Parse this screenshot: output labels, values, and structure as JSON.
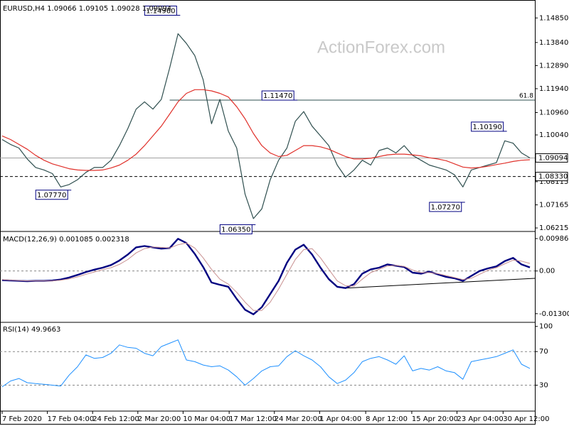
{
  "chart_data": [
    {
      "type": "line",
      "title": "EURUSD,H4  1.09066 1.09105 1.09028 1.09094",
      "watermark": "ActionForex.com",
      "xlim": [
        0,
        63
      ],
      "ylim": [
        1.061,
        1.155
      ],
      "yticks": [
        {
          "value": 1.1485,
          "label": "1.14850"
        },
        {
          "value": 1.1384,
          "label": "1.13840"
        },
        {
          "value": 1.1289,
          "label": "1.12890"
        },
        {
          "value": 1.1194,
          "label": "1.11940"
        },
        {
          "value": 1.1096,
          "label": "1.10960"
        },
        {
          "value": 1.1004,
          "label": "1.10040"
        },
        {
          "value": 1.08115,
          "label": "1.08115"
        },
        {
          "value": 1.07165,
          "label": "1.07165"
        },
        {
          "value": 1.06215,
          "label": "1.06215"
        }
      ],
      "series": [
        {
          "color": "#2f4f4f",
          "width": 1.2,
          "values": [
            1.0985,
            1.0965,
            1.095,
            1.0905,
            1.087,
            1.086,
            1.0845,
            1.079,
            1.08,
            1.082,
            1.085,
            1.087,
            1.087,
            1.09,
            1.096,
            1.103,
            1.111,
            1.114,
            1.111,
            1.115,
            1.128,
            1.142,
            1.138,
            1.133,
            1.123,
            1.105,
            1.115,
            1.102,
            1.095,
            1.076,
            1.066,
            1.07,
            1.082,
            1.09,
            1.095,
            1.106,
            1.11,
            1.104,
            1.1,
            1.096,
            1.088,
            1.083,
            1.086,
            1.09,
            1.088,
            1.094,
            1.095,
            1.093,
            1.096,
            1.092,
            1.09,
            1.088,
            1.087,
            1.086,
            1.084,
            1.079,
            1.086,
            1.087,
            1.088,
            1.089,
            1.098,
            1.097,
            1.093,
            1.09094
          ]
        },
        {
          "color": "#e0302a",
          "width": 1.2,
          "values": [
            1.1,
            1.0985,
            1.0965,
            1.0945,
            1.092,
            1.09,
            1.0885,
            1.0875,
            1.0865,
            1.086,
            1.0858,
            1.0858,
            1.086,
            1.0868,
            1.088,
            1.09,
            1.0925,
            1.096,
            1.1,
            1.104,
            1.109,
            1.114,
            1.1175,
            1.119,
            1.119,
            1.1185,
            1.1175,
            1.116,
            1.112,
            1.107,
            1.101,
            1.096,
            1.093,
            1.0915,
            1.092,
            1.094,
            1.096,
            1.096,
            1.0955,
            1.0945,
            1.093,
            1.0915,
            1.0905,
            1.0905,
            1.0908,
            1.0915,
            1.0922,
            1.0925,
            1.0925,
            1.0922,
            1.0918,
            1.091,
            1.0905,
            1.0898,
            1.0885,
            1.0872,
            1.0868,
            1.087,
            1.0875,
            1.0882,
            1.0888,
            1.0895,
            1.09,
            1.0902
          ]
        }
      ],
      "levels": [
        {
          "value": 1.09094,
          "label": "1.09094",
          "style": "solid",
          "color": "#a0a0a0"
        },
        {
          "value": 1.0833,
          "label": "1.08330",
          "style": "dashed",
          "color": "#000000"
        }
      ],
      "fib": {
        "label": "61.8",
        "value": 1.1147,
        "from": 20
      },
      "annotations": [
        {
          "value": 1.1496,
          "label": "1.14960",
          "at": 21
        },
        {
          "value": 1.0777,
          "label": "1.07770",
          "at": 8
        },
        {
          "value": 1.0635,
          "label": "1.06350",
          "at": 30
        },
        {
          "value": 1.1147,
          "label": "1.11470",
          "at": 35
        },
        {
          "value": 1.1019,
          "label": "1.10190",
          "at": 60
        },
        {
          "value": 1.0727,
          "label": "1.07270",
          "at": 55
        }
      ]
    },
    {
      "type": "line",
      "title": "MACD(12,26,9) 0.001085 0.002318",
      "xlim": [
        0,
        63
      ],
      "ylim": [
        -0.0152,
        0.0116
      ],
      "yticks": [
        0.009862,
        {
          "value": 0,
          "label": "0.00"
        },
        -0.013002
      ],
      "levels": [
        0
      ],
      "series": [
        {
          "color": "#000080",
          "width": 2.4,
          "values": [
            -0.0028,
            -0.0029,
            -0.003,
            -0.0031,
            -0.003,
            -0.003,
            -0.0029,
            -0.0026,
            -0.002,
            -0.0012,
            -0.0003,
            0.0004,
            0.001,
            0.0018,
            0.0032,
            0.005,
            0.0072,
            0.0076,
            0.0072,
            0.0068,
            0.007,
            0.0098,
            0.0085,
            0.0052,
            0.0012,
            -0.0035,
            -0.0042,
            -0.0048,
            -0.0085,
            -0.0118,
            -0.0132,
            -0.011,
            -0.007,
            -0.003,
            0.0025,
            0.0065,
            0.008,
            0.005,
            0.001,
            -0.0025,
            -0.0048,
            -0.0052,
            -0.004,
            -0.0008,
            0.0005,
            0.001,
            0.002,
            0.0016,
            0.0012,
            -0.0005,
            -0.0008,
            -0.0002,
            -0.001,
            -0.0018,
            -0.0022,
            -0.003,
            -0.0015,
            0.0,
            0.0008,
            0.0014,
            0.003,
            0.004,
            0.002,
            0.0011
          ]
        },
        {
          "color": "#c89090",
          "width": 1,
          "values": [
            -0.0026,
            -0.0028,
            -0.0029,
            -0.003,
            -0.003,
            -0.003,
            -0.003,
            -0.0028,
            -0.0024,
            -0.0018,
            -0.001,
            -0.0003,
            0.0004,
            0.001,
            0.002,
            0.0035,
            0.0055,
            0.0068,
            0.0073,
            0.0072,
            0.007,
            0.008,
            0.0085,
            0.007,
            0.004,
            0.0005,
            -0.0025,
            -0.004,
            -0.0065,
            -0.0095,
            -0.012,
            -0.012,
            -0.0095,
            -0.0055,
            -0.001,
            0.0035,
            0.0065,
            0.0068,
            0.004,
            0.0005,
            -0.003,
            -0.0045,
            -0.0046,
            -0.0025,
            -0.0005,
            0.0005,
            0.0015,
            0.0017,
            0.0014,
            0.0003,
            -0.0005,
            -0.0005,
            -0.0008,
            -0.0014,
            -0.002,
            -0.0026,
            -0.0022,
            -0.001,
            0.0002,
            0.001,
            0.0022,
            0.0033,
            0.003,
            0.0023
          ]
        }
      ]
    },
    {
      "type": "line",
      "title": "RSI(14) 49.9663",
      "xlim": [
        0,
        63
      ],
      "ylim": [
        0,
        104
      ],
      "yticks": [
        100,
        70,
        30
      ],
      "levels": [
        70,
        30
      ],
      "series": [
        {
          "color": "#1e90ff",
          "width": 1,
          "values": [
            28,
            35,
            38,
            33,
            32,
            31,
            30,
            29,
            42,
            52,
            66,
            62,
            63,
            68,
            78,
            75,
            74,
            68,
            65,
            76,
            80,
            84,
            60,
            58,
            54,
            52,
            53,
            48,
            40,
            30,
            38,
            47,
            52,
            53,
            64,
            71,
            65,
            60,
            52,
            40,
            32,
            36,
            45,
            58,
            62,
            64,
            60,
            55,
            65,
            47,
            50,
            48,
            52,
            47,
            45,
            37,
            58,
            60,
            62,
            64,
            68,
            72,
            55,
            50
          ]
        }
      ],
      "xticks": [
        {
          "value": 0,
          "label": "7 Feb 2020"
        },
        {
          "value": 5.4,
          "label": "17 Feb 04:00"
        },
        {
          "value": 10.8,
          "label": "24 Feb 12:00"
        },
        {
          "value": 16.2,
          "label": "2 Mar 20:00"
        },
        {
          "value": 21.6,
          "label": "10 Mar 04:00"
        },
        {
          "value": 27.1,
          "label": "17 Mar 12:00"
        },
        {
          "value": 32.5,
          "label": "24 Mar 20:00"
        },
        {
          "value": 37.9,
          "label": "1 Apr 04:00"
        },
        {
          "value": 43.4,
          "label": "8 Apr 12:00"
        },
        {
          "value": 48.9,
          "label": "15 Apr 20:00"
        },
        {
          "value": 54.3,
          "label": "23 Apr 04:00"
        },
        {
          "value": 59.8,
          "label": "30 Apr 12:00"
        }
      ]
    }
  ]
}
